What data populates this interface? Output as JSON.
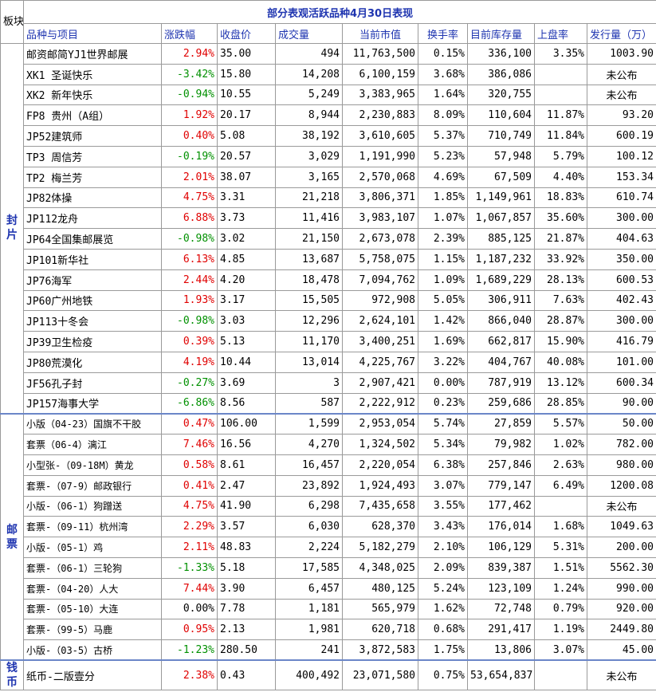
{
  "title": "部分表观活跃品种4月30日表现",
  "corner_label": "板块",
  "headers": [
    "品种与项目",
    "涨跌幅",
    "收盘价",
    "成交量",
    "当前市值",
    "换手率",
    "目前库存量",
    "上盘率",
    "发行量（万）"
  ],
  "sections": [
    {
      "label": "封片",
      "rows": [
        {
          "name": "邮资邮简YJ1世界邮展",
          "change": "2.94%",
          "dir": "up",
          "price": "35.00",
          "volume": "494",
          "market_value": "11,763,500",
          "turnover": "0.15%",
          "stock": "336,100",
          "listing_rate": "3.35%",
          "issue": "1003.90"
        },
        {
          "name": "XK1 圣诞快乐",
          "change": "-3.42%",
          "dir": "down",
          "price": "15.80",
          "volume": "14,208",
          "market_value": "6,100,159",
          "turnover": "3.68%",
          "stock": "386,086",
          "listing_rate": "",
          "issue": "未公布"
        },
        {
          "name": "XK2 新年快乐",
          "change": "-0.94%",
          "dir": "down",
          "price": "10.55",
          "volume": "5,249",
          "market_value": "3,383,965",
          "turnover": "1.64%",
          "stock": "320,755",
          "listing_rate": "",
          "issue": "未公布"
        },
        {
          "name": "FP8 贵州（A组）",
          "change": "1.92%",
          "dir": "up",
          "price": "20.17",
          "volume": "8,944",
          "market_value": "2,230,883",
          "turnover": "8.09%",
          "stock": "110,604",
          "listing_rate": "11.87%",
          "issue": "93.20"
        },
        {
          "name": "JP52建筑师",
          "change": "0.40%",
          "dir": "up",
          "price": "5.08",
          "volume": "38,192",
          "market_value": "3,610,605",
          "turnover": "5.37%",
          "stock": "710,749",
          "listing_rate": "11.84%",
          "issue": "600.19"
        },
        {
          "name": "TP3 周信芳",
          "change": "-0.19%",
          "dir": "down",
          "price": "20.57",
          "volume": "3,029",
          "market_value": "1,191,990",
          "turnover": "5.23%",
          "stock": "57,948",
          "listing_rate": "5.79%",
          "issue": "100.12"
        },
        {
          "name": "TP2 梅兰芳",
          "change": "2.01%",
          "dir": "up",
          "price": "38.07",
          "volume": "3,165",
          "market_value": "2,570,068",
          "turnover": "4.69%",
          "stock": "67,509",
          "listing_rate": "4.40%",
          "issue": "153.34"
        },
        {
          "name": "JP82体操",
          "change": "4.75%",
          "dir": "up",
          "price": "3.31",
          "volume": "21,218",
          "market_value": "3,806,371",
          "turnover": "1.85%",
          "stock": "1,149,961",
          "listing_rate": "18.83%",
          "issue": "610.74"
        },
        {
          "name": "JP112龙舟",
          "change": "6.88%",
          "dir": "up",
          "price": "3.73",
          "volume": "11,416",
          "market_value": "3,983,107",
          "turnover": "1.07%",
          "stock": "1,067,857",
          "listing_rate": "35.60%",
          "issue": "300.00"
        },
        {
          "name": "JP64全国集邮展览",
          "change": "-0.98%",
          "dir": "down",
          "price": "3.02",
          "volume": "21,150",
          "market_value": "2,673,078",
          "turnover": "2.39%",
          "stock": "885,125",
          "listing_rate": "21.87%",
          "issue": "404.63"
        },
        {
          "name": "JP101新华社",
          "change": "6.13%",
          "dir": "up",
          "price": "4.85",
          "volume": "13,687",
          "market_value": "5,758,075",
          "turnover": "1.15%",
          "stock": "1,187,232",
          "listing_rate": "33.92%",
          "issue": "350.00"
        },
        {
          "name": "JP76海军",
          "change": "2.44%",
          "dir": "up",
          "price": "4.20",
          "volume": "18,478",
          "market_value": "7,094,762",
          "turnover": "1.09%",
          "stock": "1,689,229",
          "listing_rate": "28.13%",
          "issue": "600.53"
        },
        {
          "name": "JP60广州地铁",
          "change": "1.93%",
          "dir": "up",
          "price": "3.17",
          "volume": "15,505",
          "market_value": "972,908",
          "turnover": "5.05%",
          "stock": "306,911",
          "listing_rate": "7.63%",
          "issue": "402.43"
        },
        {
          "name": "JP113十冬会",
          "change": "-0.98%",
          "dir": "down",
          "price": "3.03",
          "volume": "12,296",
          "market_value": "2,624,101",
          "turnover": "1.42%",
          "stock": "866,040",
          "listing_rate": "28.87%",
          "issue": "300.00"
        },
        {
          "name": "JP39卫生检疫",
          "change": "0.39%",
          "dir": "up",
          "price": "5.13",
          "volume": "11,170",
          "market_value": "3,400,251",
          "turnover": "1.69%",
          "stock": "662,817",
          "listing_rate": "15.90%",
          "issue": "416.79"
        },
        {
          "name": "JP80荒漠化",
          "change": "4.19%",
          "dir": "up",
          "price": "10.44",
          "volume": "13,014",
          "market_value": "4,225,767",
          "turnover": "3.22%",
          "stock": "404,767",
          "listing_rate": "40.08%",
          "issue": "101.00"
        },
        {
          "name": "JF56孔子封",
          "change": "-0.27%",
          "dir": "down",
          "price": "3.69",
          "volume": "3",
          "market_value": "2,907,421",
          "turnover": "0.00%",
          "stock": "787,919",
          "listing_rate": "13.12%",
          "issue": "600.34"
        },
        {
          "name": "JP157海事大学",
          "change": "-6.86%",
          "dir": "down",
          "price": "8.56",
          "volume": "587",
          "market_value": "2,222,912",
          "turnover": "0.23%",
          "stock": "259,686",
          "listing_rate": "28.85%",
          "issue": "90.00"
        }
      ]
    },
    {
      "label": "邮票",
      "rows": [
        {
          "name": "小版（04-23）国旗不干胶",
          "change": "0.47%",
          "dir": "up",
          "price": "106.00",
          "volume": "1,599",
          "market_value": "2,953,054",
          "turnover": "5.74%",
          "stock": "27,859",
          "listing_rate": "5.57%",
          "issue": "50.00"
        },
        {
          "name": "套票（06-4）漓江",
          "change": "7.46%",
          "dir": "up",
          "price": "16.56",
          "volume": "4,270",
          "market_value": "1,324,502",
          "turnover": "5.34%",
          "stock": "79,982",
          "listing_rate": "1.02%",
          "issue": "782.00"
        },
        {
          "name": "小型张-（09-18M）黄龙",
          "change": "0.58%",
          "dir": "up",
          "price": "8.61",
          "volume": "16,457",
          "market_value": "2,220,054",
          "turnover": "6.38%",
          "stock": "257,846",
          "listing_rate": "2.63%",
          "issue": "980.00"
        },
        {
          "name": "套票-（07-9）邮政银行",
          "change": "0.41%",
          "dir": "up",
          "price": "2.47",
          "volume": "23,892",
          "market_value": "1,924,493",
          "turnover": "3.07%",
          "stock": "779,147",
          "listing_rate": "6.49%",
          "issue": "1200.08"
        },
        {
          "name": "小版-（06-1）狗蹭送",
          "change": "4.75%",
          "dir": "up",
          "price": "41.90",
          "volume": "6,298",
          "market_value": "7,435,658",
          "turnover": "3.55%",
          "stock": "177,462",
          "listing_rate": "",
          "issue": "未公布"
        },
        {
          "name": "套票-（09-11）杭州湾",
          "change": "2.29%",
          "dir": "up",
          "price": "3.57",
          "volume": "6,030",
          "market_value": "628,370",
          "turnover": "3.43%",
          "stock": "176,014",
          "listing_rate": "1.68%",
          "issue": "1049.63"
        },
        {
          "name": "小版-（05-1）鸡",
          "change": "2.11%",
          "dir": "up",
          "price": "48.83",
          "volume": "2,224",
          "market_value": "5,182,279",
          "turnover": "2.10%",
          "stock": "106,129",
          "listing_rate": "5.31%",
          "issue": "200.00"
        },
        {
          "name": "套票-（06-1）三轮狗",
          "change": "-1.33%",
          "dir": "down",
          "price": "5.18",
          "volume": "17,585",
          "market_value": "4,348,025",
          "turnover": "2.09%",
          "stock": "839,387",
          "listing_rate": "1.51%",
          "issue": "5562.30"
        },
        {
          "name": "套票-（04-20）人大",
          "change": "7.44%",
          "dir": "up",
          "price": "3.90",
          "volume": "6,457",
          "market_value": "480,125",
          "turnover": "5.24%",
          "stock": "123,109",
          "listing_rate": "1.24%",
          "issue": "990.00"
        },
        {
          "name": "套票-（05-10）大连",
          "change": "0.00%",
          "dir": "flat",
          "price": "7.78",
          "volume": "1,181",
          "market_value": "565,979",
          "turnover": "1.62%",
          "stock": "72,748",
          "listing_rate": "0.79%",
          "issue": "920.00"
        },
        {
          "name": "套票-（99-5）马鹿",
          "change": "0.95%",
          "dir": "up",
          "price": "2.13",
          "volume": "1,981",
          "market_value": "620,718",
          "turnover": "0.68%",
          "stock": "291,417",
          "listing_rate": "1.19%",
          "issue": "2449.80"
        },
        {
          "name": "小版-（03-5）古桥",
          "change": "-1.23%",
          "dir": "down",
          "price": "280.50",
          "volume": "241",
          "market_value": "3,872,583",
          "turnover": "1.75%",
          "stock": "13,806",
          "listing_rate": "3.07%",
          "issue": "45.00"
        }
      ]
    },
    {
      "label": "钱币",
      "rows": [
        {
          "name": "纸币-二版壹分",
          "change": "2.38%",
          "dir": "up",
          "price": "0.43",
          "volume": "400,492",
          "market_value": "23,071,580",
          "turnover": "0.75%",
          "stock": "53,654,837",
          "listing_rate": "",
          "issue": "未公布"
        }
      ]
    }
  ],
  "colors": {
    "header_text": "#1f35b0",
    "up": "#e00000",
    "down": "#009000",
    "grid": "#9a9a9a",
    "separator": "#6b86c8"
  }
}
